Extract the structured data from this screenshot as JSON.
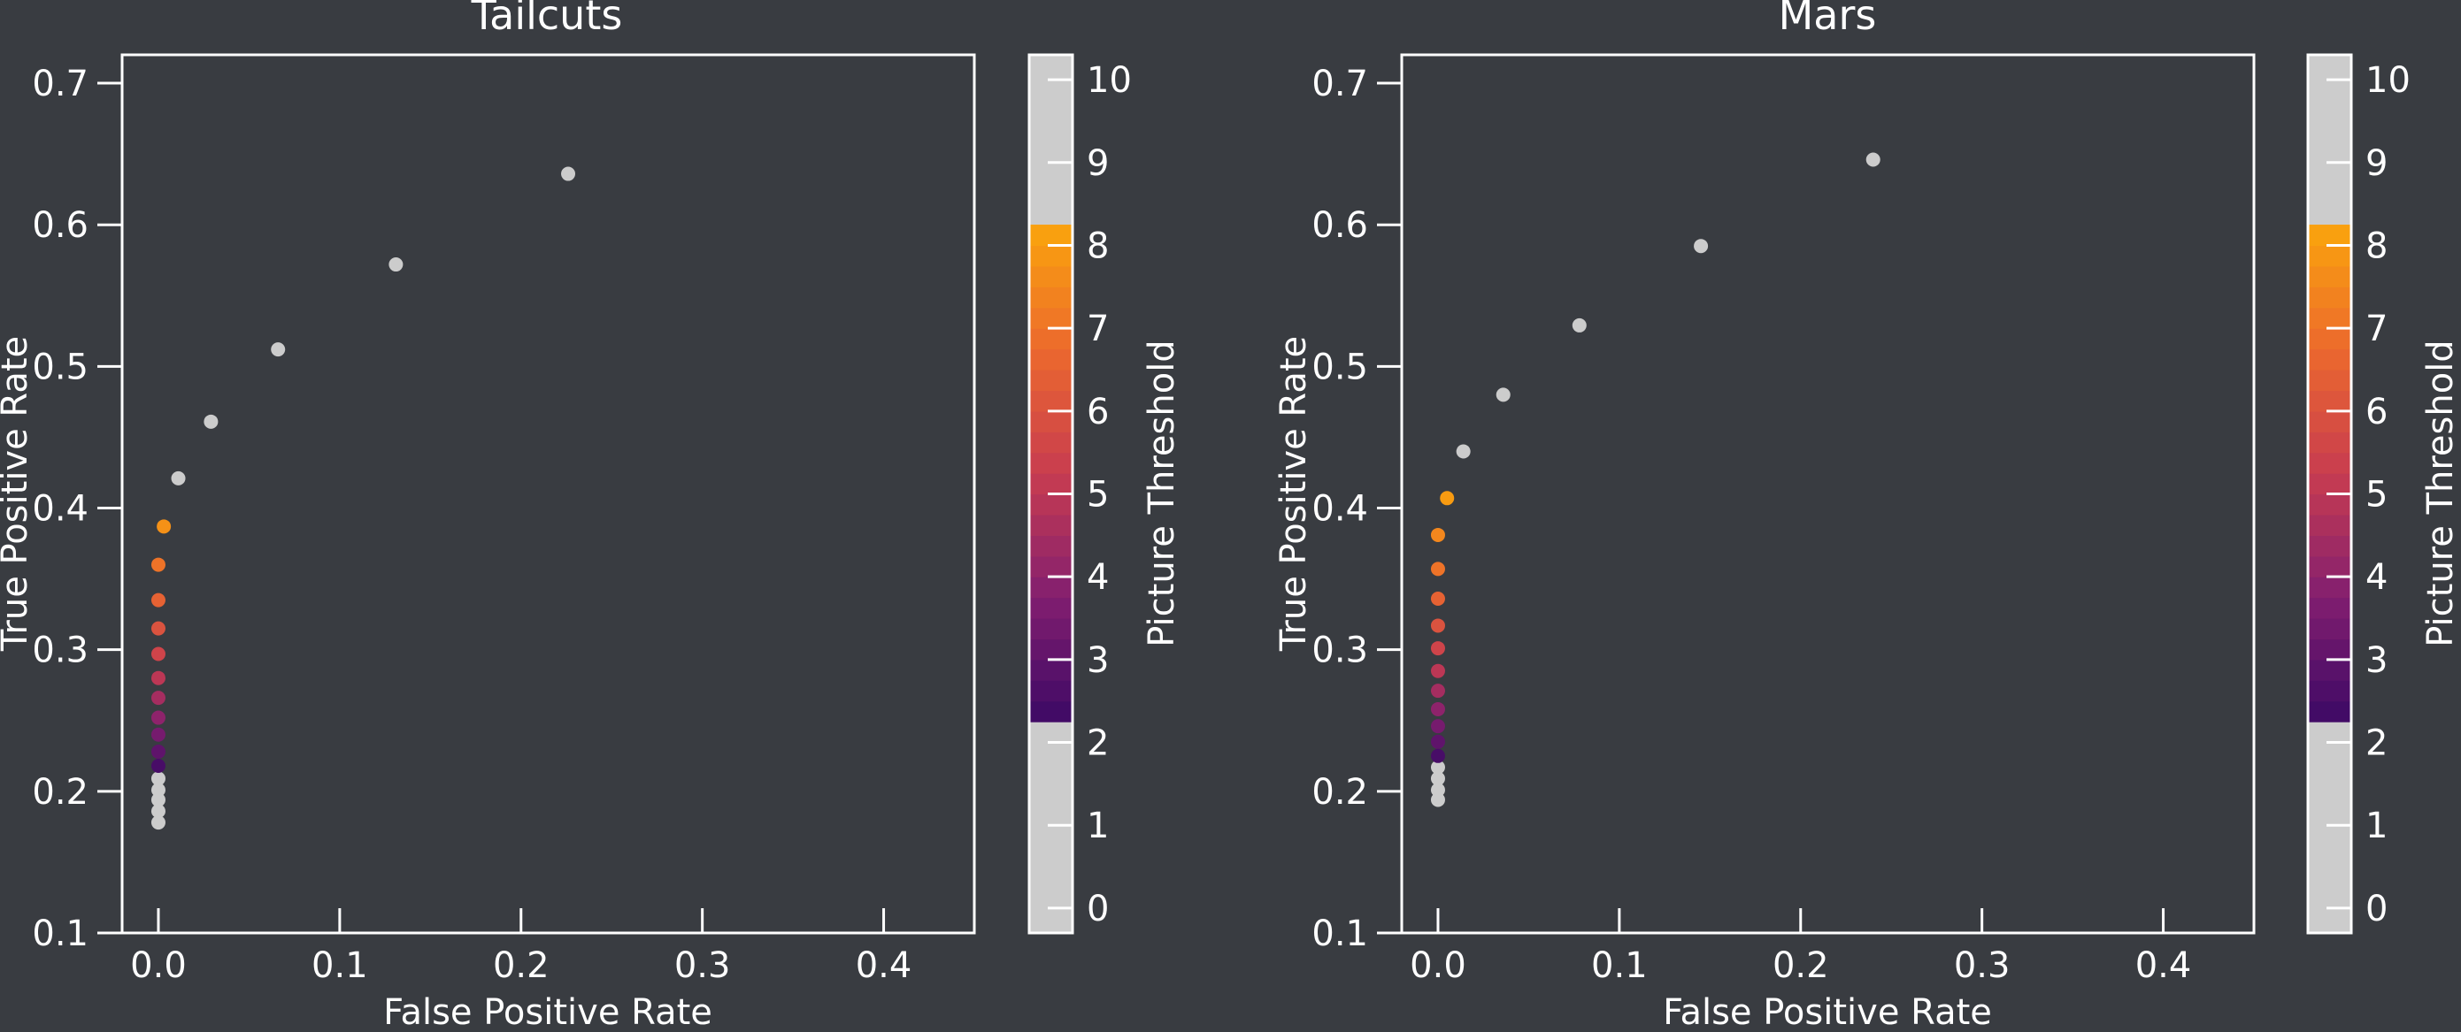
{
  "chart_data": [
    {
      "type": "scatter",
      "title": "Tailcuts",
      "xlabel": "False Positive Rate",
      "ylabel": "True Positive Rate",
      "xlim": [
        -0.02,
        0.45
      ],
      "ylim": [
        0.1,
        0.72
      ],
      "xticks": [
        "0.0",
        "0.1",
        "0.2",
        "0.3",
        "0.4"
      ],
      "yticks": [
        "0.1",
        "0.2",
        "0.3",
        "0.4",
        "0.5",
        "0.6",
        "0.7"
      ],
      "grid": false,
      "colorbar": {
        "label": "Picture Threshold",
        "ticks": [
          "0",
          "1",
          "2",
          "3",
          "4",
          "5",
          "6",
          "7",
          "8",
          "9",
          "10"
        ],
        "range": [
          -0.3,
          10.3
        ],
        "colored_range": [
          2.25,
          8.25
        ],
        "outside_color": "#cccccc"
      },
      "points": [
        {
          "x": 0.0,
          "y": 0.178,
          "c": 0.5
        },
        {
          "x": 0.0,
          "y": 0.186,
          "c": 0.75
        },
        {
          "x": 0.0,
          "y": 0.194,
          "c": 1.0
        },
        {
          "x": 0.0,
          "y": 0.201,
          "c": 1.25
        },
        {
          "x": 0.0,
          "y": 0.209,
          "c": 1.75
        },
        {
          "x": 0.0,
          "y": 0.218,
          "c": 2.5
        },
        {
          "x": 0.0,
          "y": 0.228,
          "c": 3.0
        },
        {
          "x": 0.0,
          "y": 0.24,
          "c": 3.5
        },
        {
          "x": 0.0,
          "y": 0.252,
          "c": 4.0
        },
        {
          "x": 0.0,
          "y": 0.266,
          "c": 4.5
        },
        {
          "x": 0.0,
          "y": 0.28,
          "c": 5.0
        },
        {
          "x": 0.0,
          "y": 0.297,
          "c": 5.5
        },
        {
          "x": 0.0,
          "y": 0.315,
          "c": 6.0
        },
        {
          "x": 0.0,
          "y": 0.335,
          "c": 6.5
        },
        {
          "x": 0.0,
          "y": 0.36,
          "c": 7.0
        },
        {
          "x": 0.003,
          "y": 0.387,
          "c": 7.75
        },
        {
          "x": 0.011,
          "y": 0.421,
          "c": 9.25
        },
        {
          "x": 0.029,
          "y": 0.461,
          "c": 9.5
        },
        {
          "x": 0.066,
          "y": 0.512,
          "c": 9.75
        },
        {
          "x": 0.131,
          "y": 0.572,
          "c": 10.0
        },
        {
          "x": 0.226,
          "y": 0.636,
          "c": 10.25
        }
      ]
    },
    {
      "type": "scatter",
      "title": "Mars",
      "xlabel": "False Positive Rate",
      "ylabel": "True Positive Rate",
      "xlim": [
        -0.02,
        0.45
      ],
      "ylim": [
        0.1,
        0.72
      ],
      "xticks": [
        "0.0",
        "0.1",
        "0.2",
        "0.3",
        "0.4"
      ],
      "yticks": [
        "0.1",
        "0.2",
        "0.3",
        "0.4",
        "0.5",
        "0.6",
        "0.7"
      ],
      "grid": false,
      "colorbar": {
        "label": "Picture Threshold",
        "ticks": [
          "0",
          "1",
          "2",
          "3",
          "4",
          "5",
          "6",
          "7",
          "8",
          "9",
          "10"
        ],
        "range": [
          -0.3,
          10.3
        ],
        "colored_range": [
          2.25,
          8.25
        ],
        "outside_color": "#cccccc"
      },
      "points": [
        {
          "x": 0.0,
          "y": 0.194,
          "c": 0.75
        },
        {
          "x": 0.0,
          "y": 0.201,
          "c": 1.0
        },
        {
          "x": 0.0,
          "y": 0.209,
          "c": 1.5
        },
        {
          "x": 0.0,
          "y": 0.217,
          "c": 2.0
        },
        {
          "x": 0.0,
          "y": 0.225,
          "c": 2.5
        },
        {
          "x": 0.0,
          "y": 0.235,
          "c": 3.0
        },
        {
          "x": 0.0,
          "y": 0.246,
          "c": 3.5
        },
        {
          "x": 0.0,
          "y": 0.258,
          "c": 4.0
        },
        {
          "x": 0.0,
          "y": 0.271,
          "c": 4.5
        },
        {
          "x": 0.0,
          "y": 0.285,
          "c": 5.0
        },
        {
          "x": 0.0,
          "y": 0.301,
          "c": 5.5
        },
        {
          "x": 0.0,
          "y": 0.317,
          "c": 6.0
        },
        {
          "x": 0.0,
          "y": 0.336,
          "c": 6.5
        },
        {
          "x": 0.0,
          "y": 0.357,
          "c": 7.0
        },
        {
          "x": 0.0,
          "y": 0.381,
          "c": 7.5
        },
        {
          "x": 0.005,
          "y": 0.407,
          "c": 8.0
        },
        {
          "x": 0.014,
          "y": 0.44,
          "c": 9.25
        },
        {
          "x": 0.036,
          "y": 0.48,
          "c": 9.5
        },
        {
          "x": 0.078,
          "y": 0.529,
          "c": 9.75
        },
        {
          "x": 0.145,
          "y": 0.585,
          "c": 10.0
        },
        {
          "x": 0.24,
          "y": 0.646,
          "c": 10.25
        }
      ]
    }
  ]
}
